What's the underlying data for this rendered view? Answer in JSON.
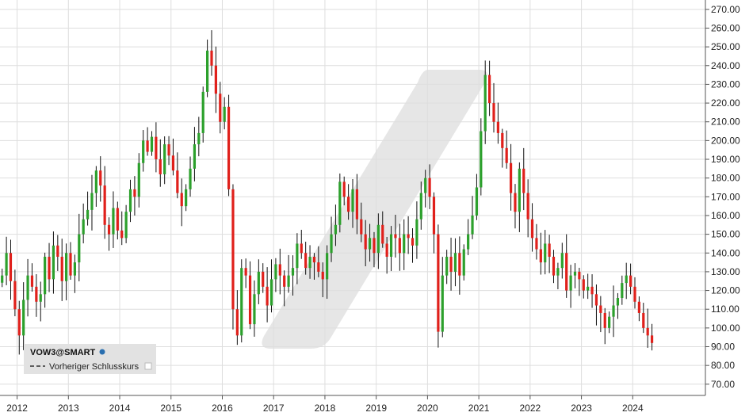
{
  "chart_data": {
    "type": "candlestick",
    "symbol": "VOW3@SMART",
    "legend": {
      "title": "VOW3@SMART",
      "items": [
        {
          "label": "Vorheriger Schlusskurs",
          "style": "dashed"
        }
      ],
      "placement": "bottom-left"
    },
    "x_axis": {
      "labels": [
        "2012",
        "2013",
        "2014",
        "2015",
        "2016",
        "2017",
        "2018",
        "2019",
        "2020",
        "2021",
        "2022",
        "2023",
        "2024"
      ],
      "range": [
        "2011-09",
        "2025-06"
      ]
    },
    "y_axis": {
      "position": "right",
      "ticks": [
        70,
        80,
        90,
        100,
        110,
        120,
        130,
        140,
        150,
        160,
        170,
        180,
        190,
        200,
        210,
        220,
        230,
        240,
        250,
        260,
        270
      ],
      "tick_labels": [
        "70.00",
        "80.00",
        "90.00",
        "100.00",
        "110.00",
        "120.00",
        "130.00",
        "140.00",
        "150.00",
        "160.00",
        "170.00",
        "180.00",
        "190.00",
        "200.00",
        "210.00",
        "220.00",
        "230.00",
        "240.00",
        "250.00",
        "260.00",
        "270.00"
      ],
      "range": [
        64,
        275
      ]
    },
    "grid": true,
    "colors": {
      "up": "#2ca02c",
      "down": "#e0201b",
      "grid": "#dedede",
      "axis": "#555555",
      "watermark": "#e6e6e6"
    },
    "start": "2011-09",
    "closes": [
      128,
      140,
      125,
      110,
      96,
      115,
      128,
      122,
      114,
      118,
      138,
      126,
      144,
      138,
      125,
      140,
      128,
      135,
      150,
      158,
      163,
      172,
      184,
      176,
      155,
      150,
      164,
      152,
      148,
      162,
      174,
      170,
      188,
      200,
      194,
      202,
      190,
      182,
      198,
      192,
      184,
      172,
      165,
      174,
      185,
      198,
      204,
      226,
      248,
      240,
      225,
      210,
      218,
      174,
      110,
      96,
      132,
      128,
      102,
      118,
      130,
      122,
      112,
      126,
      134,
      128,
      122,
      128,
      132,
      145,
      140,
      132,
      138,
      135,
      130,
      126,
      140,
      150,
      155,
      178,
      170,
      162,
      174,
      158,
      150,
      142,
      148,
      140,
      155,
      145,
      138,
      150,
      148,
      140,
      150,
      148,
      144,
      158,
      172,
      180,
      170,
      150,
      98,
      128,
      138,
      130,
      140,
      128,
      142,
      150,
      160,
      175,
      205,
      235,
      220,
      210,
      204,
      196,
      188,
      172,
      162,
      185,
      172,
      158,
      148,
      142,
      135,
      145,
      138,
      128,
      132,
      140,
      120,
      128,
      130,
      126,
      120,
      122,
      118,
      112,
      108,
      100,
      106,
      112,
      116,
      124,
      128,
      122,
      114,
      108,
      100,
      96,
      92
    ]
  }
}
